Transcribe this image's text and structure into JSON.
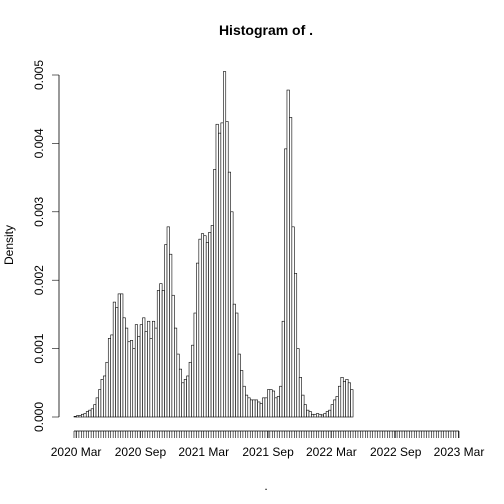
{
  "chart_data": {
    "type": "bar",
    "title": "Histogram of .",
    "xlabel": ".",
    "ylabel": "Density",
    "ylim": [
      0,
      0.005
    ],
    "y_ticks": [
      "0.000",
      "0.001",
      "0.002",
      "0.003",
      "0.004",
      "0.005"
    ],
    "x_range": [
      "2020-02-24",
      "2023-03-01"
    ],
    "x_ticks": [
      {
        "label": "2020 Mar",
        "date": "2020-03-01"
      },
      {
        "label": "2020 Sep",
        "date": "2020-09-01"
      },
      {
        "label": "2021 Mar",
        "date": "2021-03-01"
      },
      {
        "label": "2021 Sep",
        "date": "2021-09-01"
      },
      {
        "label": "2022 Mar",
        "date": "2022-03-01"
      },
      {
        "label": "2022 Sep",
        "date": "2022-09-01"
      },
      {
        "label": "2023 Mar",
        "date": "2023-03-01"
      }
    ],
    "bin_width_days": 7,
    "grid": false,
    "legend": "none",
    "series": [
      {
        "bin_start": "2020-02-24",
        "values": [
          1e-05,
          2e-05,
          2e-05,
          4e-05,
          5e-05,
          8e-05,
          0.0001,
          0.00012,
          0.00018,
          0.00028,
          0.0004,
          0.00055,
          0.0006,
          0.0008,
          0.00115,
          0.0012,
          0.00168,
          0.0016,
          0.0018,
          0.0018,
          0.00145,
          0.0013,
          0.0011,
          0.00112,
          0.001,
          0.00135,
          0.00118,
          0.00135,
          0.00145,
          0.00125,
          0.0014,
          0.00115,
          0.0014,
          0.0013,
          0.00185,
          0.00195,
          0.00185,
          0.00252,
          0.00278,
          0.00238,
          0.00178,
          0.0013,
          0.00092,
          0.0007,
          0.0005,
          0.00055,
          0.0006,
          0.0008,
          0.00105,
          0.00152,
          0.00225,
          0.0026,
          0.00268,
          0.00265,
          0.00255,
          0.0027,
          0.0028,
          0.00362,
          0.00428,
          0.00415,
          0.0043,
          0.00505,
          0.00432,
          0.00358,
          0.003,
          0.00165,
          0.00152,
          0.00092,
          0.00068,
          0.00045,
          0.00032,
          0.00028,
          0.00025,
          0.00025,
          0.00025,
          0.00022,
          0.0002,
          0.00028,
          0.00028,
          0.0004,
          0.0004,
          0.00038,
          0.00028,
          0.0003,
          0.00045,
          0.0014,
          0.00392,
          0.00478,
          0.00438,
          0.00278,
          0.0021,
          0.001,
          0.00058,
          0.00032,
          0.00018,
          0.0001,
          8e-05,
          4e-05,
          4e-05,
          5e-05,
          4e-05,
          3e-05,
          5e-05,
          8e-05,
          0.0001,
          0.00018,
          0.00025,
          0.0003,
          0.00045,
          0.00058,
          0.00052,
          0.00055,
          0.0005,
          0.0004,
          0,
          0,
          0,
          0,
          0,
          0,
          0,
          0,
          0,
          0,
          0,
          0,
          0,
          0,
          0,
          0,
          0,
          0,
          0,
          0,
          0,
          0,
          0,
          0,
          0,
          0,
          0,
          0,
          0,
          0,
          0,
          0,
          0,
          0,
          0,
          0,
          0,
          0,
          0,
          0,
          0,
          0,
          0,
          0,
          0
        ]
      }
    ]
  }
}
